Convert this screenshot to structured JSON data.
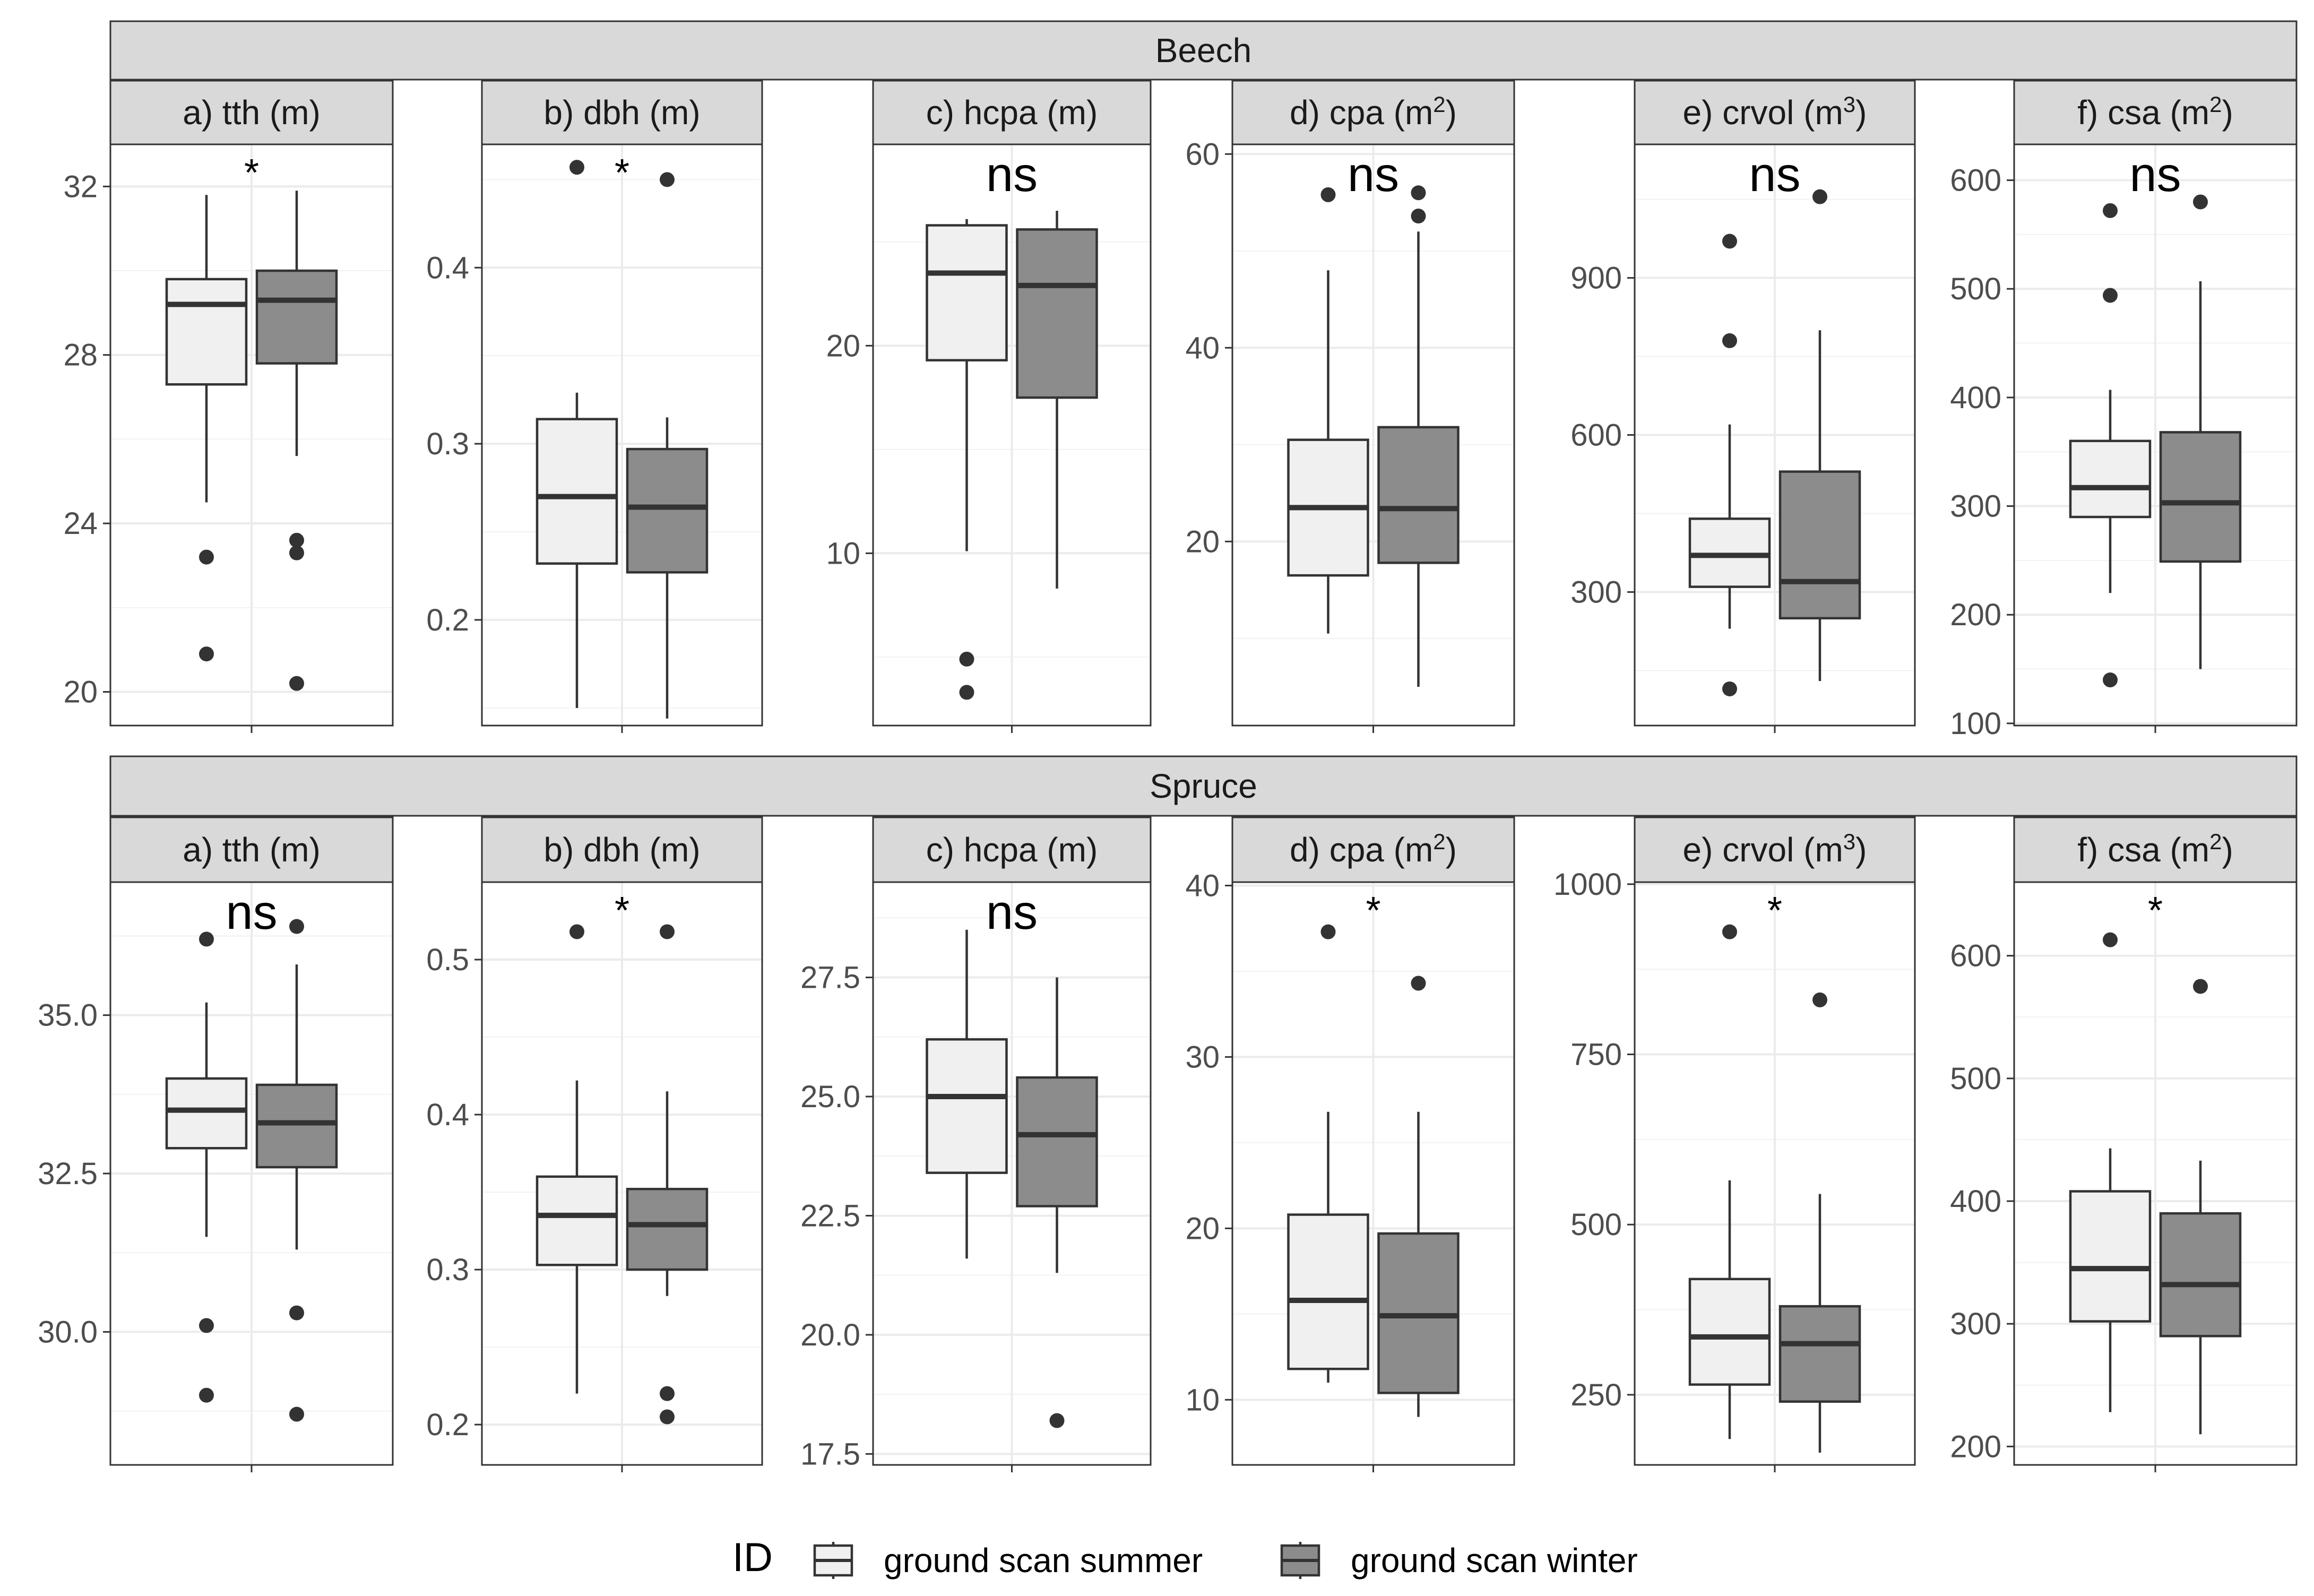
{
  "chart_data": {
    "type": "boxplot",
    "legend": {
      "title": "ID",
      "position": "bottom",
      "entries": [
        {
          "label": "ground scan summer",
          "color": "#f0f0f0"
        },
        {
          "label": "ground scan winter",
          "color": "#8c8c8c"
        }
      ]
    },
    "rows": [
      {
        "species": "Beech",
        "panels": [
          {
            "label": "a) tth (m)",
            "unit_sup": "",
            "ylim": [
              19.2,
              33.0
            ],
            "ticks": [
              20,
              24,
              28,
              32
            ],
            "tick_labels": [
              "20",
              "24",
              "28",
              "32"
            ],
            "minor_ticks": [
              22,
              26,
              30
            ],
            "sig": "*",
            "boxes": [
              {
                "group": "ground scan summer",
                "min": 24.5,
                "q1": 27.3,
                "median": 29.2,
                "q3": 29.8,
                "max": 31.8,
                "outliers": [
                  23.2,
                  20.9
                ]
              },
              {
                "group": "ground scan winter",
                "min": 25.6,
                "q1": 27.8,
                "median": 29.3,
                "q3": 30.0,
                "max": 31.9,
                "outliers": [
                  23.6,
                  23.3,
                  20.2
                ]
              }
            ]
          },
          {
            "label": "b) dbh (m)",
            "unit_sup": "",
            "ylim": [
              0.14,
              0.47
            ],
            "ticks": [
              0.2,
              0.3,
              0.4
            ],
            "tick_labels": [
              "0.2",
              "0.3",
              "0.4"
            ],
            "minor_ticks": [
              0.15,
              0.25,
              0.35,
              0.45
            ],
            "sig": "*",
            "boxes": [
              {
                "group": "ground scan summer",
                "min": 0.15,
                "q1": 0.232,
                "median": 0.27,
                "q3": 0.314,
                "max": 0.329,
                "outliers": [
                  0.457
                ]
              },
              {
                "group": "ground scan winter",
                "min": 0.144,
                "q1": 0.227,
                "median": 0.264,
                "q3": 0.297,
                "max": 0.315,
                "outliers": [
                  0.45
                ]
              }
            ]
          },
          {
            "label": "c) hcpa (m)",
            "unit_sup": "",
            "ylim": [
              1.7,
              29.7
            ],
            "ticks": [
              10,
              20
            ],
            "tick_labels": [
              "10",
              "20"
            ],
            "minor_ticks": [
              5,
              15,
              25
            ],
            "sig": "ns",
            "boxes": [
              {
                "group": "ground scan summer",
                "min": 10.1,
                "q1": 19.3,
                "median": 23.5,
                "q3": 25.8,
                "max": 26.1,
                "outliers": [
                  4.9,
                  3.3
                ]
              },
              {
                "group": "ground scan winter",
                "min": 8.3,
                "q1": 17.5,
                "median": 22.9,
                "q3": 25.6,
                "max": 26.5,
                "outliers": []
              }
            ]
          },
          {
            "label": "d) cpa (m",
            "unit_sup": "2",
            "ylim": [
              1.0,
              61.0
            ],
            "ticks": [
              20,
              40,
              60
            ],
            "tick_labels": [
              "20",
              "40",
              "60"
            ],
            "minor_ticks": [
              10,
              30,
              50
            ],
            "sig": "ns",
            "boxes": [
              {
                "group": "ground scan summer",
                "min": 10.5,
                "q1": 16.5,
                "median": 23.5,
                "q3": 30.5,
                "max": 48.0,
                "outliers": [
                  55.8
                ]
              },
              {
                "group": "ground scan winter",
                "min": 5.0,
                "q1": 17.8,
                "median": 23.4,
                "q3": 31.8,
                "max": 52.0,
                "outliers": [
                  56.0,
                  53.6
                ]
              }
            ]
          },
          {
            "label": "e) crvol (m",
            "unit_sup": "3",
            "ylim": [
              45,
              1155
            ],
            "ticks": [
              300,
              600,
              900
            ],
            "tick_labels": [
              "300",
              "600",
              "900"
            ],
            "minor_ticks": [
              150,
              450,
              750,
              1050
            ],
            "sig": "ns",
            "boxes": [
              {
                "group": "ground scan summer",
                "min": 230,
                "q1": 310,
                "median": 370,
                "q3": 440,
                "max": 620,
                "outliers": [
                  970,
                  780,
                  115
                ]
              },
              {
                "group": "ground scan winter",
                "min": 130,
                "q1": 250,
                "median": 320,
                "q3": 530,
                "max": 800,
                "outliers": [
                  1055
                ]
              }
            ]
          },
          {
            "label": "f) csa (m",
            "unit_sup": "2",
            "ylim": [
              98,
              633
            ],
            "ticks": [
              100,
              200,
              300,
              400,
              500,
              600
            ],
            "tick_labels": [
              "100",
              "200",
              "300",
              "400",
              "500",
              "600"
            ],
            "minor_ticks": [
              150,
              250,
              350,
              450,
              550
            ],
            "sig": "ns",
            "boxes": [
              {
                "group": "ground scan summer",
                "min": 220,
                "q1": 290,
                "median": 317,
                "q3": 360,
                "max": 407,
                "outliers": [
                  572,
                  494,
                  140
                ]
              },
              {
                "group": "ground scan winter",
                "min": 150,
                "q1": 249,
                "median": 303,
                "q3": 368,
                "max": 507,
                "outliers": [
                  580
                ]
              }
            ]
          }
        ]
      },
      {
        "species": "Spruce",
        "panels": [
          {
            "label": "a) tth (m)",
            "unit_sup": "",
            "ylim": [
              27.9,
              37.1
            ],
            "ticks": [
              30.0,
              32.5,
              35.0
            ],
            "tick_labels": [
              "30.0",
              "32.5",
              "35.0"
            ],
            "minor_ticks": [
              28.75,
              31.25,
              33.75,
              36.25
            ],
            "sig": "ns",
            "boxes": [
              {
                "group": "ground scan summer",
                "min": 31.5,
                "q1": 32.9,
                "median": 33.5,
                "q3": 34.0,
                "max": 35.2,
                "outliers": [
                  36.2,
                  30.1,
                  29.0
                ]
              },
              {
                "group": "ground scan winter",
                "min": 31.3,
                "q1": 32.6,
                "median": 33.3,
                "q3": 33.9,
                "max": 35.8,
                "outliers": [
                  36.4,
                  30.3,
                  28.7
                ]
              }
            ]
          },
          {
            "label": "b) dbh (m)",
            "unit_sup": "",
            "ylim": [
              0.174,
              0.55
            ],
            "ticks": [
              0.2,
              0.3,
              0.4,
              0.5
            ],
            "tick_labels": [
              "0.2",
              "0.3",
              "0.4",
              "0.5"
            ],
            "minor_ticks": [
              0.25,
              0.35,
              0.45
            ],
            "sig": "*",
            "boxes": [
              {
                "group": "ground scan summer",
                "min": 0.22,
                "q1": 0.303,
                "median": 0.335,
                "q3": 0.36,
                "max": 0.422,
                "outliers": [
                  0.518
                ]
              },
              {
                "group": "ground scan winter",
                "min": 0.283,
                "q1": 0.3,
                "median": 0.329,
                "q3": 0.352,
                "max": 0.415,
                "outliers": [
                  0.518,
                  0.22,
                  0.205
                ]
              }
            ]
          },
          {
            "label": "c) hcpa (m)",
            "unit_sup": "",
            "ylim": [
              17.27,
              29.5
            ],
            "ticks": [
              17.5,
              20.0,
              22.5,
              25.0,
              27.5
            ],
            "tick_labels": [
              "17.5",
              "20.0",
              "22.5",
              "25.0",
              "27.5"
            ],
            "minor_ticks": [
              18.75,
              21.25,
              23.75,
              26.25,
              28.75
            ],
            "sig": "ns",
            "boxes": [
              {
                "group": "ground scan summer",
                "min": 21.6,
                "q1": 23.4,
                "median": 25.0,
                "q3": 26.2,
                "max": 28.5,
                "outliers": []
              },
              {
                "group": "ground scan winter",
                "min": 21.3,
                "q1": 22.7,
                "median": 24.2,
                "q3": 25.4,
                "max": 27.5,
                "outliers": [
                  18.2
                ]
              }
            ]
          },
          {
            "label": "d) cpa (m",
            "unit_sup": "2",
            "ylim": [
              6.2,
              40.2
            ],
            "ticks": [
              10,
              20,
              30,
              40
            ],
            "tick_labels": [
              "10",
              "20",
              "30",
              "40"
            ],
            "minor_ticks": [
              15,
              25,
              35
            ],
            "sig": "*",
            "boxes": [
              {
                "group": "ground scan summer",
                "min": 11.0,
                "q1": 11.8,
                "median": 15.8,
                "q3": 20.8,
                "max": 26.8,
                "outliers": [
                  37.3
                ]
              },
              {
                "group": "ground scan winter",
                "min": 9.0,
                "q1": 10.4,
                "median": 14.9,
                "q3": 19.7,
                "max": 26.8,
                "outliers": [
                  34.3
                ]
              }
            ]
          },
          {
            "label": "e) crvol (m",
            "unit_sup": "3",
            "ylim": [
              147,
              1003
            ],
            "ticks": [
              250,
              500,
              750,
              1000
            ],
            "tick_labels": [
              "250",
              "500",
              "750",
              "1000"
            ],
            "minor_ticks": [
              375,
              625,
              875
            ],
            "sig": "*",
            "boxes": [
              {
                "group": "ground scan summer",
                "min": 185,
                "q1": 265,
                "median": 335,
                "q3": 420,
                "max": 565,
                "outliers": [
                  930
                ]
              },
              {
                "group": "ground scan winter",
                "min": 165,
                "q1": 240,
                "median": 325,
                "q3": 380,
                "max": 545,
                "outliers": [
                  830
                ]
              }
            ]
          },
          {
            "label": "f) csa (m",
            "unit_sup": "2",
            "ylim": [
              185,
              660
            ],
            "ticks": [
              200,
              300,
              400,
              500,
              600
            ],
            "tick_labels": [
              "200",
              "300",
              "400",
              "500",
              "600"
            ],
            "minor_ticks": [
              250,
              350,
              450,
              550
            ],
            "sig": "*",
            "boxes": [
              {
                "group": "ground scan summer",
                "min": 228,
                "q1": 302,
                "median": 345,
                "q3": 408,
                "max": 443,
                "outliers": [
                  613
                ]
              },
              {
                "group": "ground scan winter",
                "min": 210,
                "q1": 290,
                "median": 332,
                "q3": 390,
                "max": 433,
                "outliers": [
                  575
                ]
              }
            ]
          }
        ]
      }
    ]
  }
}
